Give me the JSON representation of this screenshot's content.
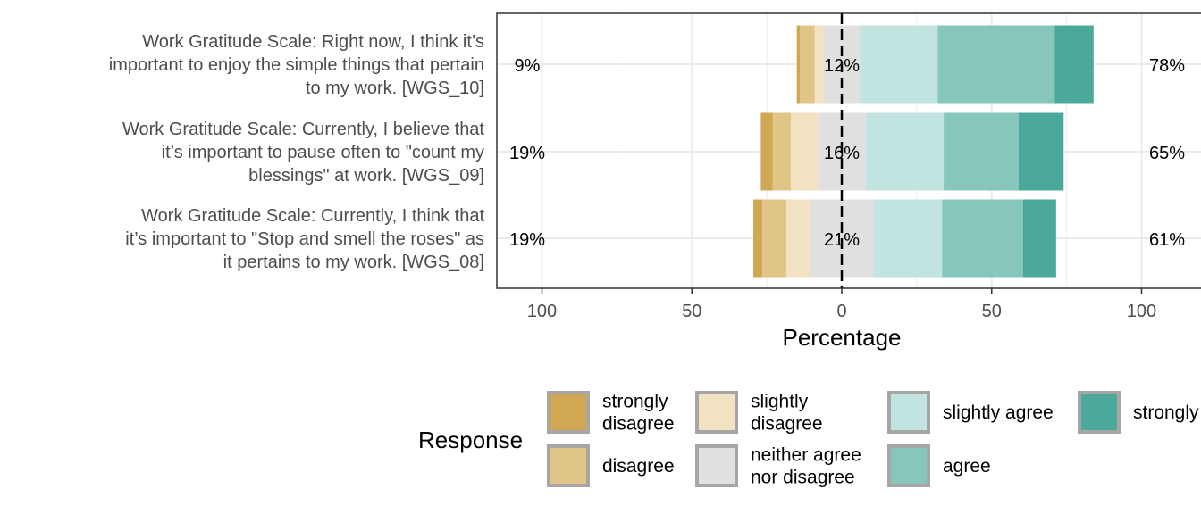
{
  "chart_data": {
    "type": "bar",
    "orientation": "horizontal-diverging",
    "xlabel": "Percentage",
    "x_ticks": [
      100,
      50,
      0,
      50,
      100
    ],
    "xlim": [
      -115,
      115
    ],
    "categories": [
      "Work Gratitude Scale: Right now, I think it’s important to enjoy the simple things that pertain to my work. [WGS_10]",
      "Work Gratitude Scale: Currently, I believe that it’s important to pause often to \"count my blessings\" at work. [WGS_09]",
      "Work Gratitude Scale: Currently, I think that it’s important to \"Stop and smell the roses\" as it pertains to my work. [WGS_08]"
    ],
    "category_lines": [
      [
        "Work Gratitude Scale: Right now, I think it’s",
        "important to enjoy the simple things that pertain",
        "to my work. [WGS_10]"
      ],
      [
        "Work Gratitude Scale: Currently, I believe that",
        "it’s important to pause often to \"count my",
        "blessings\" at work. [WGS_09]"
      ],
      [
        "Work Gratitude Scale: Currently, I think that",
        "it’s important to \"Stop and smell the roses\" as",
        "it pertains to my work. [WGS_08]"
      ]
    ],
    "series": [
      {
        "name": "strongly disagree",
        "values": [
          1,
          4,
          3
        ]
      },
      {
        "name": "disagree",
        "values": [
          5,
          6,
          8
        ]
      },
      {
        "name": "slightly disagree",
        "values": [
          3,
          9,
          8
        ]
      },
      {
        "name": "neither agree nor disagree",
        "values": [
          12,
          16,
          21
        ]
      },
      {
        "name": "slightly agree",
        "values": [
          26,
          26,
          23
        ]
      },
      {
        "name": "agree",
        "values": [
          39,
          25,
          27
        ]
      },
      {
        "name": "strongly agree",
        "values": [
          13,
          15,
          11
        ]
      }
    ],
    "percent_labels": [
      {
        "low": "9%",
        "neutral": "12%",
        "high": "78%"
      },
      {
        "low": "19%",
        "neutral": "16%",
        "high": "65%"
      },
      {
        "low": "19%",
        "neutral": "21%",
        "high": "61%"
      }
    ],
    "legend": {
      "title": "Response",
      "position": "bottom",
      "items": [
        {
          "lines": [
            "strongly",
            "disagree"
          ]
        },
        {
          "lines": [
            "disagree"
          ]
        },
        {
          "lines": [
            "slightly",
            "disagree"
          ]
        },
        {
          "lines": [
            "neither agree",
            "nor disagree"
          ]
        },
        {
          "lines": [
            "slightly agree"
          ]
        },
        {
          "lines": [
            "agree"
          ]
        },
        {
          "lines": [
            "strongly agree"
          ]
        }
      ]
    },
    "colors": [
      "#D0A853",
      "#E1C586",
      "#F2E2C2",
      "#E0E0E0",
      "#C1E4E0",
      "#86C6BB",
      "#4BA99B"
    ],
    "grid": true
  }
}
